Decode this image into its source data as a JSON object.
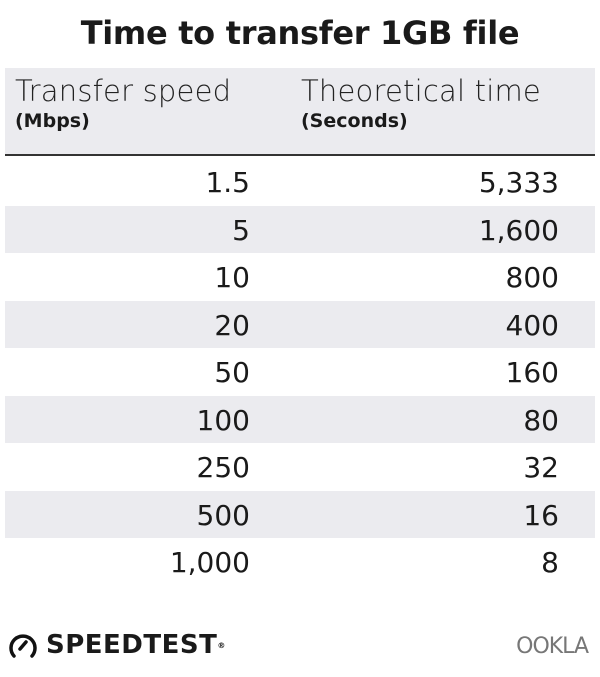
{
  "chart_data": {
    "type": "table",
    "title": "Time to transfer 1GB file",
    "columns": [
      {
        "label": "Transfer speed",
        "unit": "(Mbps)"
      },
      {
        "label": "Theoretical time",
        "unit": "(Seconds)"
      }
    ],
    "rows": [
      [
        "1.5",
        "5,333"
      ],
      [
        "5",
        "1,600"
      ],
      [
        "10",
        "800"
      ],
      [
        "20",
        "400"
      ],
      [
        "50",
        "160"
      ],
      [
        "100",
        "80"
      ],
      [
        "250",
        "32"
      ],
      [
        "500",
        "16"
      ],
      [
        "1,000",
        "8"
      ]
    ],
    "stripe_color": "#ebebef"
  },
  "footer": {
    "brand_left": "SPEEDTEST",
    "brand_right": "OOKLA"
  }
}
